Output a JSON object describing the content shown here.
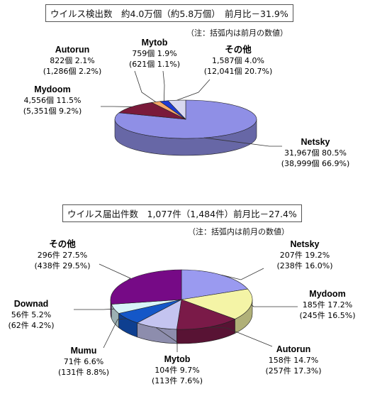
{
  "chart_data": [
    {
      "type": "pie",
      "title": "ウイルス検出数　約4.0万個（約5.8万個）　前月比－31.9%",
      "note": "（注：括弧内は前月の数値）",
      "slices": [
        {
          "name": "Netsky",
          "value": 31967,
          "percent": 80.5,
          "line1": "31,967個  80.5%",
          "line2": "(38,999個  66.9%)",
          "color": "#8f8fe6"
        },
        {
          "name": "Mydoom",
          "value": 4556,
          "percent": 11.5,
          "line1": "4,556個  11.5%",
          "line2": "(5,351個  9.2%)",
          "color": "#7a1a3a"
        },
        {
          "name": "Autorun",
          "value": 822,
          "percent": 2.1,
          "line1": "822個  2.1%",
          "line2": "(1,286個  2.2%)",
          "color": "#f6a868"
        },
        {
          "name": "Mytob",
          "value": 759,
          "percent": 1.9,
          "line1": "759個  1.9%",
          "line2": "(621個  1.1%)",
          "color": "#1d3bd6"
        },
        {
          "name": "その他",
          "value": 1587,
          "percent": 4.0,
          "line1": "1,587個  4.0%",
          "line2": "(12,041個  20.7%)",
          "color": "#d8d8f0"
        }
      ]
    },
    {
      "type": "pie",
      "title": "ウイルス届出件数　1,077件（1,484件）前月比－27.4%",
      "note": "（注：括弧内は前月の数値）",
      "slices": [
        {
          "name": "Netsky",
          "value": 207,
          "percent": 19.2,
          "line1": "207件  19.2%",
          "line2": "(238件  16.0%)",
          "color": "#9a9af0"
        },
        {
          "name": "Mydoom",
          "value": 185,
          "percent": 17.2,
          "line1": "185件  17.2%",
          "line2": "(245件  16.5%)",
          "color": "#f4f4a6"
        },
        {
          "name": "Autorun",
          "value": 158,
          "percent": 14.7,
          "line1": "158件  14.7%",
          "line2": "(257件  17.3%)",
          "color": "#7a1a48"
        },
        {
          "name": "Mytob",
          "value": 104,
          "percent": 9.7,
          "line1": "104件  9.7%",
          "line2": "(113件  7.6%)",
          "color": "#c4c4f0"
        },
        {
          "name": "Mumu",
          "value": 71,
          "percent": 6.6,
          "line1": "71件  6.6%",
          "line2": "(131件  8.8%)",
          "color": "#1457c8"
        },
        {
          "name": "Downad",
          "value": 56,
          "percent": 5.2,
          "line1": "56件  5.2%",
          "line2": "(62件  4.2%)",
          "color": "#d8f4f8"
        },
        {
          "name": "その他",
          "value": 296,
          "percent": 27.5,
          "line1": "296件  27.5%",
          "line2": "(438件  29.5%)",
          "color": "#760a86"
        }
      ]
    }
  ]
}
